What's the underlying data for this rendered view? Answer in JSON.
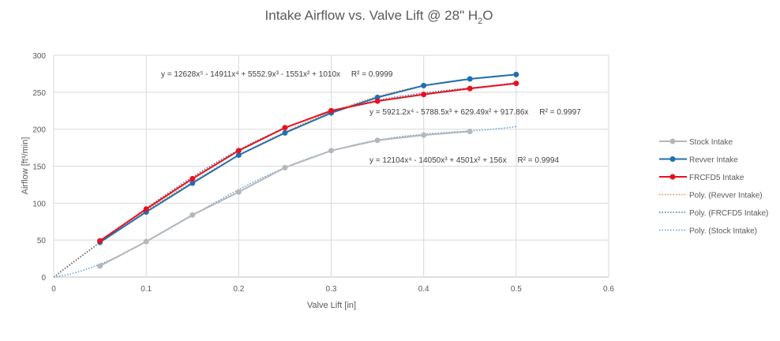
{
  "chart_data": {
    "type": "line",
    "title": "Intake Airflow vs. Valve Lift @ 28\" H2O",
    "title_main": "Intake Airflow vs. Valve Lift @ 28\" H",
    "title_sub": "2",
    "title_end": "O",
    "xlabel": "Valve Lift [in]",
    "ylabel": "Airflow [ft³/min]",
    "xlim": [
      0,
      0.6
    ],
    "ylim": [
      0,
      300
    ],
    "xticks": [
      "0",
      "0.1",
      "0.2",
      "0.3",
      "0.4",
      "0.5",
      "0.6"
    ],
    "yticks": [
      "0",
      "50",
      "100",
      "150",
      "200",
      "250",
      "300"
    ],
    "grid": true,
    "legend_position": "right",
    "series": [
      {
        "name": "Stock Intake",
        "color": "#b4b7bb",
        "x": [
          0.05,
          0.1,
          0.15,
          0.2,
          0.25,
          0.3,
          0.35,
          0.4,
          0.45
        ],
        "values": [
          15,
          48,
          84,
          115,
          148,
          171,
          185,
          192,
          197
        ]
      },
      {
        "name": "Revver Intake",
        "color": "#1f6fb2",
        "x": [
          0.05,
          0.1,
          0.15,
          0.2,
          0.25,
          0.3,
          0.35,
          0.4,
          0.45,
          0.5
        ],
        "values": [
          47,
          88,
          127,
          165,
          195,
          222,
          243,
          259,
          268,
          274
        ]
      },
      {
        "name": "FRCFD5 Intake",
        "color": "#e8101e",
        "x": [
          0.05,
          0.1,
          0.15,
          0.2,
          0.25,
          0.3,
          0.35,
          0.4,
          0.45,
          0.5
        ],
        "values": [
          49,
          92,
          133,
          171,
          202,
          225,
          238,
          247,
          255,
          262
        ]
      }
    ],
    "trendlines": [
      {
        "name": "Poly. (Revver Intake)",
        "color": "#f08a4b",
        "coefficients": [
          12628,
          -14911,
          5552.9,
          -1551,
          1010,
          0
        ],
        "x_range": [
          0,
          0.5
        ]
      },
      {
        "name": "Poly. (FRCFD5 Intake)",
        "color": "#4a6d9a",
        "coefficients": [
          5921.2,
          -5788.5,
          629.49,
          917.86,
          0
        ],
        "x_range": [
          0,
          0.5
        ]
      },
      {
        "name": "Poly. (Stock Intake)",
        "color": "#5b9bd5",
        "coefficients": [
          12104,
          -14050,
          4501,
          156,
          0
        ],
        "x_range": [
          0,
          0.5
        ]
      }
    ],
    "annotations": [
      {
        "text": "y = 12628x⁵ - 14911x⁴ + 5552.9x³ - 1551x² + 1010x     R² = 0.9999"
      },
      {
        "text": "y = 5921.2x⁴ - 5788.5x³ + 629.49x² + 917.86x     R² = 0.9997"
      },
      {
        "text": "y = 12104x⁴ - 14050x³ + 4501x² + 156x     R² = 0.9994"
      }
    ]
  }
}
